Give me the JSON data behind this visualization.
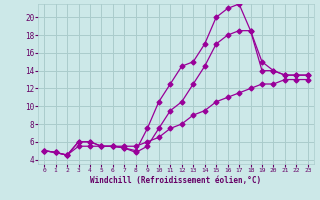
{
  "bg_color": "#cce8e8",
  "line_color": "#990099",
  "grid_color": "#aacccc",
  "xlabel": "Windchill (Refroidissement éolien,°C)",
  "ylim": [
    3.5,
    21.5
  ],
  "xlim": [
    -0.5,
    23.5
  ],
  "yticks": [
    4,
    6,
    8,
    10,
    12,
    14,
    16,
    18,
    20
  ],
  "xticks": [
    0,
    1,
    2,
    3,
    4,
    5,
    6,
    7,
    8,
    9,
    10,
    11,
    12,
    13,
    14,
    15,
    16,
    17,
    18,
    19,
    20,
    21,
    22,
    23
  ],
  "line1_x": [
    0,
    1,
    2,
    3,
    4,
    5,
    6,
    7,
    8,
    9,
    10,
    11,
    12,
    13,
    14,
    15,
    16,
    17,
    18,
    19,
    20,
    21,
    22,
    23
  ],
  "line1_y": [
    5.0,
    4.8,
    4.5,
    6.0,
    6.0,
    5.5,
    5.5,
    5.3,
    5.0,
    7.5,
    10.5,
    12.5,
    14.5,
    15.0,
    17.0,
    20.0,
    21.0,
    21.5,
    18.5,
    14.0,
    14.0,
    13.5,
    13.5,
    13.5
  ],
  "line2_x": [
    0,
    1,
    2,
    3,
    4,
    5,
    6,
    7,
    8,
    9,
    10,
    11,
    12,
    13,
    14,
    15,
    16,
    17,
    18,
    19,
    20,
    21,
    22,
    23
  ],
  "line2_y": [
    5.0,
    4.8,
    4.5,
    6.0,
    6.0,
    5.5,
    5.5,
    5.3,
    4.8,
    5.5,
    7.5,
    9.5,
    10.5,
    12.5,
    14.5,
    17.0,
    18.0,
    18.5,
    18.5,
    15.0,
    14.0,
    13.5,
    13.5,
    13.5
  ],
  "line3_x": [
    0,
    1,
    2,
    3,
    4,
    5,
    6,
    7,
    8,
    9,
    10,
    11,
    12,
    13,
    14,
    15,
    16,
    17,
    18,
    19,
    20,
    21,
    22,
    23
  ],
  "line3_y": [
    5.0,
    4.8,
    4.5,
    5.5,
    5.5,
    5.5,
    5.5,
    5.5,
    5.5,
    6.0,
    6.5,
    7.5,
    8.0,
    9.0,
    9.5,
    10.5,
    11.0,
    11.5,
    12.0,
    12.5,
    12.5,
    13.0,
    13.0,
    13.0
  ]
}
